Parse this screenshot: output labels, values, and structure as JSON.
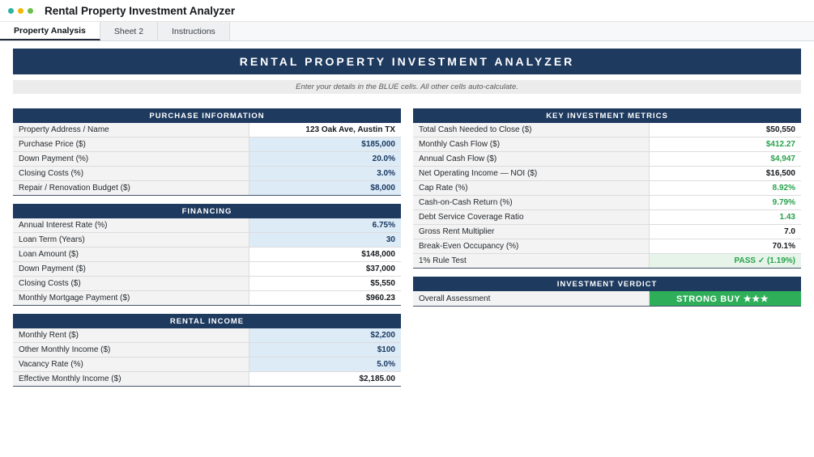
{
  "window": {
    "title": "Rental Property Investment Analyzer"
  },
  "tabs": [
    {
      "label": "Property Analysis",
      "active": true
    },
    {
      "label": "Sheet 2",
      "active": false
    },
    {
      "label": "Instructions",
      "active": false
    }
  ],
  "banner": {
    "title": "RENTAL PROPERTY INVESTMENT ANALYZER",
    "subtitle": "Enter your details in the BLUE cells. All other cells auto-calculate."
  },
  "purchase": {
    "title": "PURCHASE INFORMATION",
    "rows": [
      {
        "label": "Property Address / Name",
        "value": "123 Oak Ave, Austin TX"
      },
      {
        "label": "Purchase Price ($)",
        "value": "$185,000"
      },
      {
        "label": "Down Payment (%)",
        "value": "20.0%"
      },
      {
        "label": "Closing Costs (%)",
        "value": "3.0%"
      },
      {
        "label": "Repair / Renovation Budget ($)",
        "value": "$8,000"
      }
    ]
  },
  "financing": {
    "title": "FINANCING",
    "rows": [
      {
        "label": "Annual Interest Rate (%)",
        "value": "6.75%"
      },
      {
        "label": "Loan Term (Years)",
        "value": "30"
      },
      {
        "label": "Loan Amount ($)",
        "value": "$148,000"
      },
      {
        "label": "Down Payment ($)",
        "value": "$37,000"
      },
      {
        "label": "Closing Costs ($)",
        "value": "$5,550"
      },
      {
        "label": "Monthly Mortgage Payment ($)",
        "value": "$960.23"
      }
    ]
  },
  "rental_income": {
    "title": "RENTAL INCOME",
    "rows": [
      {
        "label": "Monthly Rent ($)",
        "value": "$2,200"
      },
      {
        "label": "Other Monthly Income ($)",
        "value": "$100"
      },
      {
        "label": "Vacancy Rate (%)",
        "value": "5.0%"
      },
      {
        "label": "Effective Monthly Income ($)",
        "value": "$2,185.00"
      }
    ]
  },
  "metrics": {
    "title": "KEY INVESTMENT METRICS",
    "rows": [
      {
        "label": "Total Cash Needed to Close ($)",
        "value": "$50,550"
      },
      {
        "label": "Monthly Cash Flow ($)",
        "value": "$412.27"
      },
      {
        "label": "Annual Cash Flow ($)",
        "value": "$4,947"
      },
      {
        "label": "Net Operating Income — NOI ($)",
        "value": "$16,500"
      },
      {
        "label": "Cap Rate (%)",
        "value": "8.92%"
      },
      {
        "label": "Cash-on-Cash Return (%)",
        "value": "9.79%"
      },
      {
        "label": "Debt Service Coverage Ratio",
        "value": "1.43"
      },
      {
        "label": "Gross Rent Multiplier",
        "value": "7.0"
      },
      {
        "label": "Break-Even Occupancy (%)",
        "value": "70.1%"
      },
      {
        "label": "1% Rule Test",
        "value": "PASS ✓ (1.19%)"
      }
    ]
  },
  "verdict": {
    "title": "INVESTMENT VERDICT",
    "label": "Overall Assessment",
    "value": "STRONG BUY ★★★"
  },
  "colors": {
    "navy": "#1e3a5f",
    "input_blue": "#ddebf7",
    "green_text": "#28a24c",
    "verdict_green": "#2fae59",
    "pass_bg": "#e7f4ea"
  }
}
